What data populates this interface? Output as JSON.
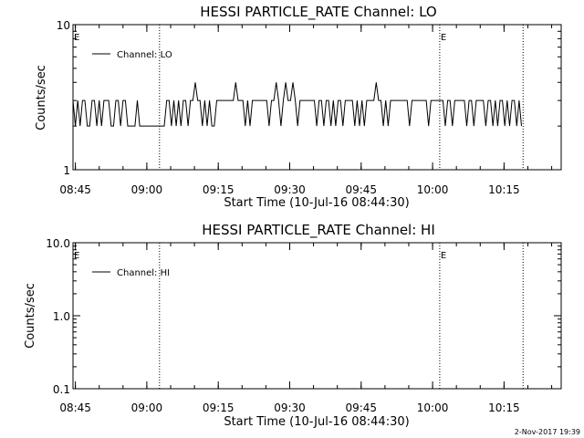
{
  "footer": {
    "timestamp": "2-Nov-2017 19:39"
  },
  "chart_data": [
    {
      "type": "line",
      "title": "HESSI PARTICLE_RATE Channel: LO",
      "xlabel": "Start Time (10-Jul-16 08:44:30)",
      "ylabel": "Counts/sec",
      "yscale": "log",
      "ylim": [
        1,
        10
      ],
      "xlim": [
        "08:44:30",
        "10:27:00"
      ],
      "x_ticks": [
        "08:45",
        "09:00",
        "09:15",
        "09:30",
        "09:45",
        "10:00",
        "10:15"
      ],
      "y_ticks": [
        "1",
        "10"
      ],
      "legend": "top-left",
      "markers": [
        {
          "time": "09:02:40",
          "label": "E"
        },
        {
          "time": "10:01:30",
          "label": "E"
        },
        {
          "time": "10:19:00",
          "label": ""
        }
      ],
      "series": [
        {
          "name": "Channel: LO",
          "x": [
            "08:44:30",
            "08:45:00",
            "08:45:30",
            "08:46:00",
            "08:46:30",
            "08:47:00",
            "08:47:30",
            "08:48:00",
            "08:48:30",
            "08:49:00",
            "08:49:30",
            "08:50:00",
            "08:50:30",
            "08:51:00",
            "08:51:30",
            "08:52:00",
            "08:52:30",
            "08:53:00",
            "08:53:30",
            "08:54:00",
            "08:54:30",
            "08:55:00",
            "08:55:30",
            "08:56:00",
            "08:56:30",
            "08:57:00",
            "08:57:30",
            "08:58:00",
            "08:58:30",
            "09:02:40",
            "09:03:10",
            "09:03:40",
            "09:04:10",
            "09:04:40",
            "09:05:10",
            "09:05:40",
            "09:06:10",
            "09:06:40",
            "09:07:10",
            "09:07:40",
            "09:08:10",
            "09:08:40",
            "09:09:10",
            "09:09:40",
            "09:10:10",
            "09:10:40",
            "09:11:10",
            "09:11:40",
            "09:12:10",
            "09:12:40",
            "09:13:10",
            "09:13:40",
            "09:14:10",
            "09:14:40",
            "09:15:10",
            "09:15:40",
            "09:16:10",
            "09:16:40",
            "09:17:10",
            "09:17:40",
            "09:18:10",
            "09:18:40",
            "09:19:10",
            "09:19:40",
            "09:20:10",
            "09:20:40",
            "09:21:10",
            "09:21:40",
            "09:22:10",
            "09:22:40",
            "09:23:10",
            "09:23:40",
            "09:24:10",
            "09:24:40",
            "09:25:10",
            "09:25:40",
            "09:26:10",
            "09:26:40",
            "09:27:10",
            "09:27:40",
            "09:28:10",
            "09:28:40",
            "09:29:10",
            "09:29:40",
            "09:30:10",
            "09:30:40",
            "09:31:10",
            "09:31:40",
            "09:32:10",
            "09:32:40",
            "09:33:10",
            "09:33:40",
            "09:34:10",
            "09:34:40",
            "09:35:10",
            "09:35:40",
            "09:36:10",
            "09:36:40",
            "09:37:10",
            "09:37:40",
            "09:38:10",
            "09:38:40",
            "09:39:10",
            "09:39:40",
            "09:40:10",
            "09:40:40",
            "09:41:10",
            "09:41:40",
            "09:42:10",
            "09:42:40",
            "09:43:10",
            "09:43:40",
            "09:44:10",
            "09:44:40",
            "09:45:10",
            "09:45:40",
            "09:46:10",
            "09:46:40",
            "09:47:10",
            "09:47:40",
            "09:48:10",
            "09:48:40",
            "09:49:10",
            "09:49:40",
            "09:50:10",
            "09:50:40",
            "09:51:10",
            "09:51:40",
            "09:52:10",
            "09:52:40",
            "09:53:10",
            "09:53:40",
            "09:54:10",
            "09:54:40",
            "09:55:10",
            "09:55:40",
            "09:56:10",
            "09:56:40",
            "09:57:10",
            "09:57:40",
            "09:58:10",
            "09:58:40",
            "09:59:10",
            "09:59:40",
            "10:00:10",
            "10:00:40",
            "10:01:10",
            "10:01:40",
            "10:02:10",
            "10:02:40",
            "10:03:10",
            "10:03:40",
            "10:04:10",
            "10:04:40",
            "10:05:10",
            "10:05:40",
            "10:06:10",
            "10:06:40",
            "10:07:10",
            "10:07:40",
            "10:08:10",
            "10:08:40",
            "10:09:10",
            "10:09:40",
            "10:10:10",
            "10:10:40",
            "10:11:10",
            "10:11:40",
            "10:12:10",
            "10:12:40",
            "10:13:10",
            "10:13:40",
            "10:14:10",
            "10:14:40",
            "10:15:10",
            "10:15:40",
            "10:16:10",
            "10:16:40",
            "10:17:10",
            "10:17:40",
            "10:18:10",
            "10:18:40"
          ],
          "y": [
            3,
            2,
            3,
            2,
            3,
            3,
            2,
            2,
            3,
            3,
            2,
            3,
            2,
            3,
            3,
            3,
            2,
            2,
            3,
            3,
            2,
            3,
            3,
            2,
            2,
            2,
            2,
            3,
            2,
            2,
            2,
            2,
            3,
            3,
            2,
            3,
            2,
            3,
            2,
            3,
            3,
            2,
            3,
            3,
            4,
            3,
            3,
            2,
            3,
            2,
            3,
            2,
            2,
            3,
            3,
            3,
            3,
            3,
            3,
            3,
            3,
            4,
            3,
            3,
            3,
            2,
            3,
            2,
            3,
            3,
            3,
            3,
            3,
            3,
            3,
            2,
            3,
            3,
            4,
            3,
            2,
            3,
            4,
            3,
            3,
            4,
            3,
            2,
            3,
            3,
            3,
            3,
            3,
            3,
            3,
            2,
            3,
            3,
            2,
            3,
            3,
            2,
            3,
            2,
            3,
            3,
            2,
            3,
            3,
            3,
            3,
            2,
            3,
            2,
            3,
            2,
            3,
            3,
            3,
            3,
            4,
            3,
            3,
            2,
            3,
            2,
            3,
            3,
            3,
            3,
            3,
            3,
            3,
            3,
            2,
            3,
            3,
            3,
            3,
            3,
            3,
            3,
            2,
            3,
            3,
            3,
            3,
            3,
            3,
            2,
            3,
            3,
            2,
            3,
            3,
            3,
            3,
            3,
            2,
            3,
            3,
            2,
            3,
            3,
            3,
            3,
            2,
            3,
            3,
            2,
            3,
            2,
            3,
            3,
            2,
            3,
            2,
            3,
            3,
            2,
            3,
            2
          ]
        }
      ]
    },
    {
      "type": "line",
      "title": "HESSI PARTICLE_RATE Channel: HI",
      "xlabel": "Start Time (10-Jul-16 08:44:30)",
      "ylabel": "Counts/sec",
      "yscale": "log",
      "ylim": [
        0.1,
        10
      ],
      "xlim": [
        "08:44:30",
        "10:27:00"
      ],
      "x_ticks": [
        "08:45",
        "09:00",
        "09:15",
        "09:30",
        "09:45",
        "10:00",
        "10:15"
      ],
      "y_ticks": [
        "0.1",
        "1.0",
        "10.0"
      ],
      "legend": "top-left",
      "markers": [
        {
          "time": "09:02:40",
          "label": "E"
        },
        {
          "time": "10:01:30",
          "label": "E"
        },
        {
          "time": "10:19:00",
          "label": ""
        }
      ],
      "series": [
        {
          "name": "Channel: HI",
          "x": [],
          "y": []
        }
      ]
    }
  ]
}
